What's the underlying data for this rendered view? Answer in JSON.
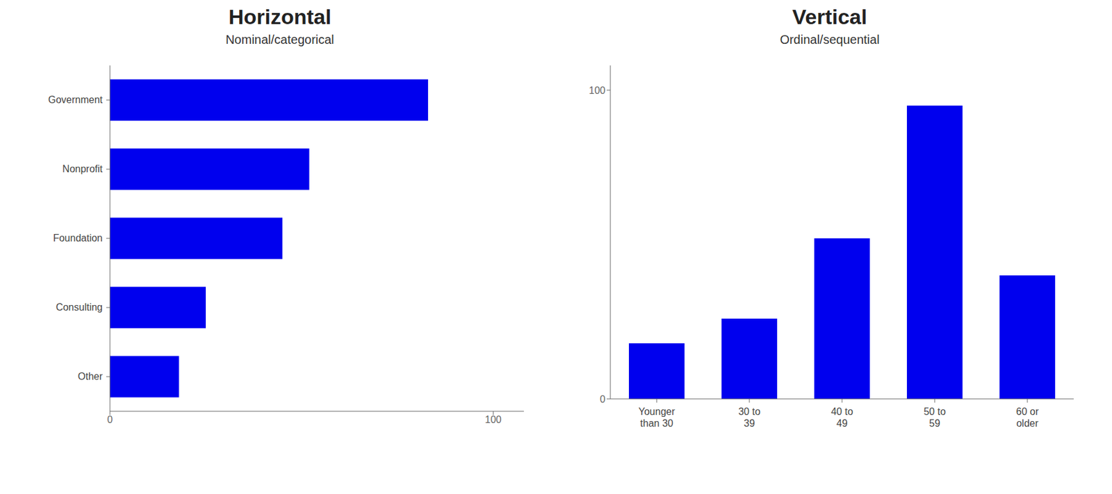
{
  "chart_data": [
    {
      "type": "bar",
      "title": "Horizontal",
      "subtitle": "Nominal/categorical",
      "orientation": "horizontal",
      "categories": [
        "Government",
        "Nonprofit",
        "Foundation",
        "Consulting",
        "Other"
      ],
      "values": [
        83,
        52,
        45,
        25,
        18
      ],
      "color": "#0000ee",
      "xlim": [
        0,
        108
      ],
      "xticks": [
        0,
        100
      ],
      "grid": false
    },
    {
      "type": "bar",
      "title": "Vertical",
      "subtitle": "Ordinal/sequential",
      "categories": [
        "Younger\nthan 30",
        "30 to\n39",
        "40 to\n49",
        "50 to\n59",
        "60 or\nolder"
      ],
      "values": [
        18,
        26,
        52,
        95,
        40
      ],
      "color": "#0000ee",
      "ylim": [
        0,
        108
      ],
      "yticks": [
        0,
        100
      ],
      "grid": false
    }
  ]
}
